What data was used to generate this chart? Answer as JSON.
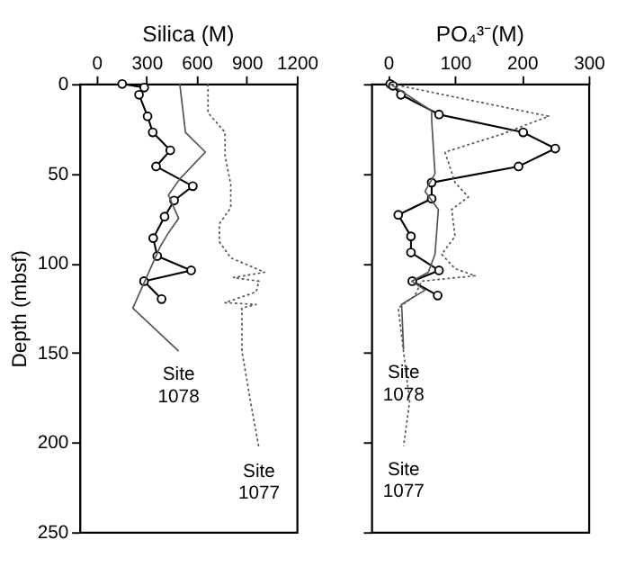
{
  "chart_data": [
    {
      "type": "line",
      "title": "Silica (M)",
      "ylabel": "Depth (mbsf)",
      "xlim": [
        -100,
        1200
      ],
      "xticks": [
        0,
        300,
        600,
        900,
        1200
      ],
      "ylim": [
        250,
        0
      ],
      "yticks": [
        0,
        50,
        100,
        150,
        200,
        250
      ],
      "grid": false,
      "series": [
        {
          "color": "#000000",
          "marker": "circle",
          "line_style": "solid",
          "x": [
            154,
            286,
            255,
            306,
            337,
            442,
            357,
            577,
            465,
            408,
            340,
            364,
            567,
            285,
            390
          ],
          "values": [
            0,
            2,
            6,
            18,
            27,
            37,
            46,
            57,
            65,
            74,
            86,
            96,
            104,
            110,
            120
          ]
        },
        {
          "color": "#555555",
          "marker": "none",
          "line_style": "solid",
          "x": [
            499,
            533,
            652,
            499,
            431,
            492,
            431,
            380,
            218,
            492
          ],
          "values": [
            0,
            27,
            38,
            53,
            62,
            75,
            83,
            91,
            125,
            149
          ]
        },
        {
          "color": "#555555",
          "marker": "none",
          "line_style": "dotted",
          "x": [
            668,
            668,
            770,
            770,
            804,
            804,
            736,
            736,
            804,
            1007,
            820,
            973,
            956,
            770,
            956,
            871,
            871,
            922,
            973
          ],
          "values": [
            0,
            16,
            27,
            40,
            56,
            69,
            78,
            88,
            97,
            105,
            108,
            110,
            116,
            122,
            123,
            125,
            149,
            177,
            203
          ]
        }
      ],
      "annotations": [
        {
          "text": "Site\n1078",
          "x": 492,
          "y": 149
        },
        {
          "text": "Site\n1077",
          "x": 973,
          "y": 203
        }
      ]
    },
    {
      "type": "line",
      "title": "PO₄³⁻(M)",
      "xlim": [
        -25,
        300
      ],
      "xticks": [
        0,
        100,
        200,
        300
      ],
      "ylim": [
        250,
        0
      ],
      "yticks": [
        0,
        50,
        100,
        150,
        200,
        250
      ],
      "tick_labels": "x",
      "grid": false,
      "series": [
        {
          "color": "#000000",
          "marker": "circle",
          "line_style": "solid",
          "x": [
            3,
            7,
            19,
            76,
            202,
            250,
            195,
            65,
            65,
            15,
            34,
            34,
            76,
            36,
            74
          ],
          "values": [
            0,
            1,
            6,
            17,
            27,
            36,
            46,
            55,
            64,
            73,
            85,
            94,
            104,
            110,
            118
          ]
        },
        {
          "color": "#555555",
          "marker": "none",
          "line_style": "solid",
          "x": [
            3,
            65,
            65,
            70,
            55,
            75,
            70,
            60,
            35,
            55,
            20,
            23
          ],
          "values": [
            0,
            15,
            20,
            50,
            60,
            70,
            95,
            105,
            110,
            115,
            123,
            148
          ]
        },
        {
          "color": "#555555",
          "marker": "none",
          "line_style": "dotted",
          "x": [
            5,
            135,
            240,
            170,
            85,
            100,
            120,
            95,
            100,
            80,
            100,
            130,
            50,
            40,
            15,
            32,
            23
          ],
          "values": [
            0,
            10,
            18,
            28,
            38,
            55,
            63,
            70,
            85,
            95,
            103,
            107,
            110,
            118,
            125,
            177,
            202
          ]
        }
      ],
      "annotations": [
        {
          "text": "Site\n1078",
          "x": 23,
          "y": 148
        },
        {
          "text": "Site\n1077",
          "x": 23,
          "y": 202
        }
      ]
    }
  ]
}
